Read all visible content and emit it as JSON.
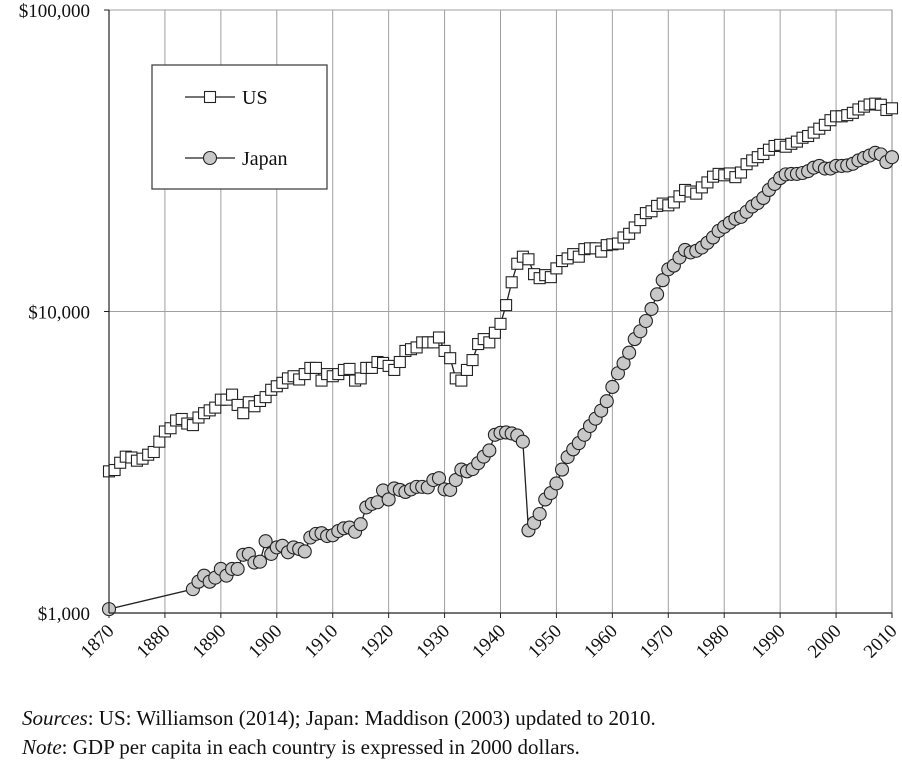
{
  "chart_data": {
    "type": "line",
    "scale_y": "log",
    "ylim": [
      1000,
      100000
    ],
    "xlim": [
      1870,
      2010
    ],
    "y_ticks": [
      {
        "value": 1000,
        "label": "$1,000"
      },
      {
        "value": 10000,
        "label": "$10,000"
      },
      {
        "value": 100000,
        "label": "$100,000"
      }
    ],
    "x_ticks": [
      "1870",
      "1880",
      "1890",
      "1900",
      "1910",
      "1920",
      "1930",
      "1940",
      "1950",
      "1960",
      "1970",
      "1980",
      "1990",
      "2000",
      "2010"
    ],
    "grid": true,
    "legend_position": "top-left",
    "series": [
      {
        "name": "US",
        "marker": "square",
        "color": "#ffffff",
        "points": [
          [
            1870,
            2950
          ],
          [
            1871,
            2980
          ],
          [
            1872,
            3150
          ],
          [
            1873,
            3300
          ],
          [
            1874,
            3280
          ],
          [
            1875,
            3200
          ],
          [
            1876,
            3250
          ],
          [
            1877,
            3350
          ],
          [
            1878,
            3420
          ],
          [
            1879,
            3700
          ],
          [
            1880,
            4000
          ],
          [
            1881,
            4100
          ],
          [
            1882,
            4350
          ],
          [
            1883,
            4400
          ],
          [
            1884,
            4250
          ],
          [
            1885,
            4200
          ],
          [
            1886,
            4450
          ],
          [
            1887,
            4600
          ],
          [
            1888,
            4700
          ],
          [
            1889,
            4800
          ],
          [
            1890,
            5100
          ],
          [
            1891,
            5100
          ],
          [
            1892,
            5300
          ],
          [
            1893,
            4900
          ],
          [
            1894,
            4600
          ],
          [
            1895,
            5000
          ],
          [
            1896,
            4850
          ],
          [
            1897,
            5050
          ],
          [
            1898,
            5200
          ],
          [
            1899,
            5500
          ],
          [
            1900,
            5650
          ],
          [
            1901,
            5800
          ],
          [
            1902,
            6000
          ],
          [
            1903,
            6100
          ],
          [
            1904,
            5950
          ],
          [
            1905,
            6200
          ],
          [
            1906,
            6500
          ],
          [
            1907,
            6500
          ],
          [
            1908,
            5900
          ],
          [
            1909,
            6200
          ],
          [
            1910,
            6100
          ],
          [
            1911,
            6200
          ],
          [
            1912,
            6400
          ],
          [
            1913,
            6450
          ],
          [
            1914,
            5900
          ],
          [
            1915,
            6000
          ],
          [
            1916,
            6500
          ],
          [
            1917,
            6500
          ],
          [
            1918,
            6800
          ],
          [
            1919,
            6750
          ],
          [
            1920,
            6600
          ],
          [
            1921,
            6400
          ],
          [
            1922,
            6800
          ],
          [
            1923,
            7400
          ],
          [
            1924,
            7500
          ],
          [
            1925,
            7600
          ],
          [
            1926,
            7900
          ],
          [
            1927,
            7900
          ],
          [
            1928,
            7900
          ],
          [
            1929,
            8200
          ],
          [
            1930,
            7400
          ],
          [
            1931,
            7000
          ],
          [
            1932,
            6000
          ],
          [
            1933,
            5900
          ],
          [
            1934,
            6400
          ],
          [
            1935,
            6900
          ],
          [
            1936,
            7800
          ],
          [
            1937,
            8100
          ],
          [
            1938,
            7900
          ],
          [
            1939,
            8500
          ],
          [
            1940,
            9100
          ],
          [
            1941,
            10500
          ],
          [
            1942,
            12500
          ],
          [
            1943,
            14400
          ],
          [
            1944,
            15200
          ],
          [
            1945,
            14900
          ],
          [
            1946,
            13300
          ],
          [
            1947,
            12900
          ],
          [
            1948,
            13200
          ],
          [
            1949,
            13000
          ],
          [
            1950,
            13900
          ],
          [
            1951,
            14700
          ],
          [
            1952,
            15000
          ],
          [
            1953,
            15500
          ],
          [
            1954,
            15200
          ],
          [
            1955,
            16100
          ],
          [
            1956,
            16200
          ],
          [
            1957,
            16200
          ],
          [
            1958,
            15800
          ],
          [
            1959,
            16600
          ],
          [
            1960,
            16700
          ],
          [
            1961,
            16800
          ],
          [
            1962,
            17600
          ],
          [
            1963,
            18100
          ],
          [
            1964,
            19000
          ],
          [
            1965,
            20100
          ],
          [
            1966,
            21200
          ],
          [
            1967,
            21500
          ],
          [
            1968,
            22400
          ],
          [
            1969,
            22800
          ],
          [
            1970,
            22500
          ],
          [
            1971,
            23000
          ],
          [
            1972,
            24100
          ],
          [
            1973,
            25300
          ],
          [
            1974,
            25000
          ],
          [
            1975,
            24600
          ],
          [
            1976,
            25800
          ],
          [
            1977,
            26800
          ],
          [
            1978,
            28000
          ],
          [
            1979,
            28600
          ],
          [
            1980,
            28300
          ],
          [
            1981,
            28700
          ],
          [
            1982,
            27900
          ],
          [
            1983,
            28900
          ],
          [
            1984,
            30800
          ],
          [
            1985,
            31700
          ],
          [
            1986,
            32500
          ],
          [
            1987,
            33300
          ],
          [
            1988,
            34400
          ],
          [
            1989,
            35400
          ],
          [
            1990,
            35700
          ],
          [
            1991,
            35200
          ],
          [
            1992,
            36000
          ],
          [
            1993,
            36600
          ],
          [
            1994,
            37700
          ],
          [
            1995,
            38200
          ],
          [
            1996,
            39200
          ],
          [
            1997,
            40400
          ],
          [
            1998,
            41600
          ],
          [
            1999,
            43100
          ],
          [
            2000,
            44400
          ],
          [
            2001,
            44400
          ],
          [
            2002,
            44800
          ],
          [
            2003,
            45600
          ],
          [
            2004,
            46800
          ],
          [
            2005,
            47800
          ],
          [
            2006,
            48600
          ],
          [
            2007,
            48900
          ],
          [
            2008,
            48500
          ],
          [
            2009,
            46600
          ],
          [
            2010,
            47200
          ]
        ]
      },
      {
        "name": "Japan",
        "marker": "circle",
        "color": "#c8c8c8",
        "points": [
          [
            1870,
            1030
          ],
          [
            1885,
            1200
          ],
          [
            1886,
            1270
          ],
          [
            1887,
            1330
          ],
          [
            1888,
            1270
          ],
          [
            1889,
            1310
          ],
          [
            1890,
            1400
          ],
          [
            1891,
            1330
          ],
          [
            1892,
            1400
          ],
          [
            1893,
            1400
          ],
          [
            1894,
            1560
          ],
          [
            1895,
            1570
          ],
          [
            1896,
            1470
          ],
          [
            1897,
            1480
          ],
          [
            1898,
            1730
          ],
          [
            1899,
            1570
          ],
          [
            1900,
            1650
          ],
          [
            1901,
            1670
          ],
          [
            1902,
            1590
          ],
          [
            1903,
            1650
          ],
          [
            1904,
            1630
          ],
          [
            1905,
            1600
          ],
          [
            1906,
            1780
          ],
          [
            1907,
            1830
          ],
          [
            1908,
            1840
          ],
          [
            1909,
            1800
          ],
          [
            1910,
            1810
          ],
          [
            1911,
            1870
          ],
          [
            1912,
            1910
          ],
          [
            1913,
            1920
          ],
          [
            1914,
            1860
          ],
          [
            1915,
            1970
          ],
          [
            1916,
            2240
          ],
          [
            1917,
            2300
          ],
          [
            1918,
            2330
          ],
          [
            1919,
            2550
          ],
          [
            1920,
            2380
          ],
          [
            1921,
            2590
          ],
          [
            1922,
            2560
          ],
          [
            1923,
            2520
          ],
          [
            1924,
            2570
          ],
          [
            1925,
            2620
          ],
          [
            1926,
            2620
          ],
          [
            1927,
            2610
          ],
          [
            1928,
            2760
          ],
          [
            1929,
            2800
          ],
          [
            1930,
            2570
          ],
          [
            1931,
            2560
          ],
          [
            1932,
            2760
          ],
          [
            1933,
            2990
          ],
          [
            1934,
            2950
          ],
          [
            1935,
            3000
          ],
          [
            1936,
            3140
          ],
          [
            1937,
            3300
          ],
          [
            1938,
            3460
          ],
          [
            1939,
            3900
          ],
          [
            1940,
            3960
          ],
          [
            1941,
            3970
          ],
          [
            1942,
            3940
          ],
          [
            1943,
            3880
          ],
          [
            1944,
            3700
          ],
          [
            1945,
            1880
          ],
          [
            1946,
            1990
          ],
          [
            1947,
            2130
          ],
          [
            1948,
            2380
          ],
          [
            1949,
            2500
          ],
          [
            1950,
            2690
          ],
          [
            1951,
            2990
          ],
          [
            1952,
            3290
          ],
          [
            1953,
            3490
          ],
          [
            1954,
            3660
          ],
          [
            1955,
            3900
          ],
          [
            1956,
            4170
          ],
          [
            1957,
            4410
          ],
          [
            1958,
            4690
          ],
          [
            1959,
            5040
          ],
          [
            1960,
            5620
          ],
          [
            1961,
            6240
          ],
          [
            1962,
            6730
          ],
          [
            1963,
            7300
          ],
          [
            1964,
            8100
          ],
          [
            1965,
            8600
          ],
          [
            1966,
            9300
          ],
          [
            1967,
            10200
          ],
          [
            1968,
            11400
          ],
          [
            1969,
            12700
          ],
          [
            1970,
            13800
          ],
          [
            1971,
            14200
          ],
          [
            1972,
            15100
          ],
          [
            1973,
            16000
          ],
          [
            1974,
            15700
          ],
          [
            1975,
            15900
          ],
          [
            1976,
            16300
          ],
          [
            1977,
            16900
          ],
          [
            1978,
            17600
          ],
          [
            1979,
            18500
          ],
          [
            1980,
            19100
          ],
          [
            1981,
            19700
          ],
          [
            1982,
            20300
          ],
          [
            1983,
            20600
          ],
          [
            1984,
            21400
          ],
          [
            1985,
            22300
          ],
          [
            1986,
            22900
          ],
          [
            1987,
            23800
          ],
          [
            1988,
            25300
          ],
          [
            1989,
            26500
          ],
          [
            1990,
            27700
          ],
          [
            1991,
            28500
          ],
          [
            1992,
            28600
          ],
          [
            1993,
            28600
          ],
          [
            1994,
            28800
          ],
          [
            1995,
            29200
          ],
          [
            1996,
            30000
          ],
          [
            1997,
            30400
          ],
          [
            1998,
            29800
          ],
          [
            1999,
            29800
          ],
          [
            2000,
            30400
          ],
          [
            2001,
            30400
          ],
          [
            2002,
            30500
          ],
          [
            2003,
            30900
          ],
          [
            2004,
            31700
          ],
          [
            2005,
            32300
          ],
          [
            2006,
            32900
          ],
          [
            2007,
            33600
          ],
          [
            2008,
            33200
          ],
          [
            2009,
            31300
          ],
          [
            2010,
            32500
          ]
        ]
      }
    ]
  },
  "footer": {
    "sources_label": "Sources",
    "sources_text": ": US: Williamson (2014); Japan: Maddison (2003) updated to 2010.",
    "note_label": "Note",
    "note_text": ": GDP per capita in each country is expressed in 2000 dollars."
  }
}
